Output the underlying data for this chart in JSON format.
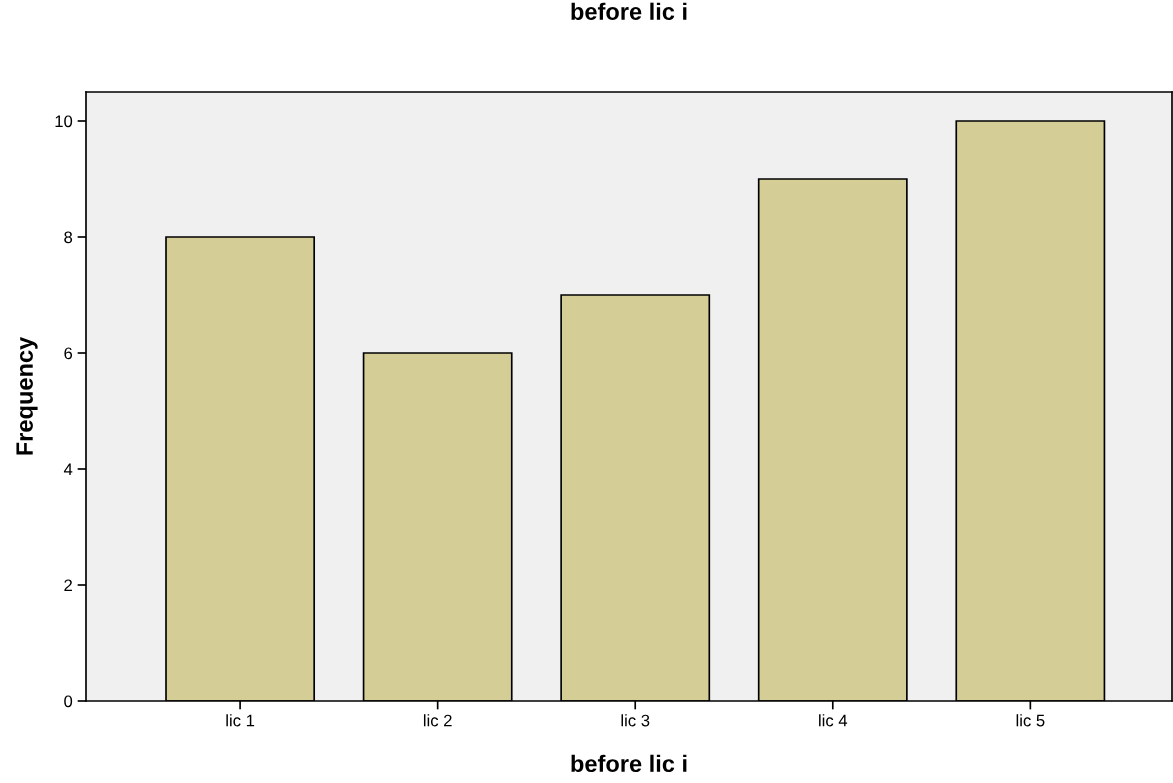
{
  "chart_data": {
    "type": "bar",
    "title": "before lic i",
    "xlabel": "before lic i",
    "ylabel": "Frequency",
    "categories": [
      "lic 1",
      "lic 2",
      "lic 3",
      "lic 4",
      "lic 5"
    ],
    "values": [
      8,
      6,
      7,
      9,
      10
    ],
    "color": "#d4ce96",
    "ylim": [
      0,
      10.5
    ],
    "yticks": [
      0,
      2,
      4,
      6,
      8,
      10
    ],
    "grid": false,
    "legend": false
  }
}
